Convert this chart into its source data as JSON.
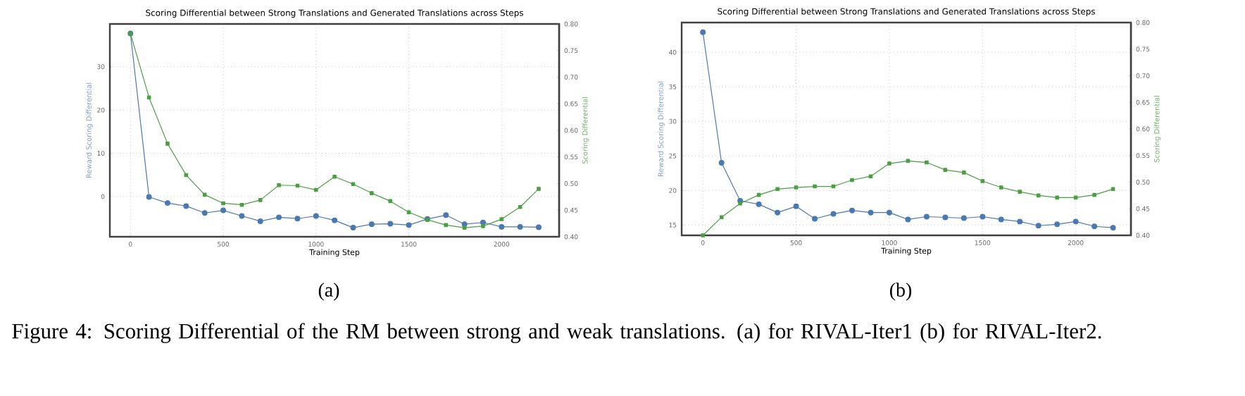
{
  "chart_data": [
    {
      "type": "line",
      "title": "Scoring Differential between Strong Translations and Generated Translations across Steps",
      "xlabel": "Training Step",
      "ylabel": "Reward Scoring Differential",
      "y2label": "Scoring Differential",
      "x": [
        0,
        100,
        200,
        300,
        400,
        500,
        600,
        700,
        800,
        900,
        1000,
        1100,
        1200,
        1300,
        1400,
        1500,
        1600,
        1700,
        1800,
        1900,
        2000,
        2100,
        2200
      ],
      "xlim": [
        -111,
        2310
      ],
      "xticks": [
        0,
        500,
        1000,
        1500,
        2000
      ],
      "ylim": [
        -9.3,
        39.9
      ],
      "yticks": [
        0,
        10,
        20,
        30
      ],
      "y2lim": [
        0.4,
        0.8
      ],
      "y2ticks": [
        {
          "value": 0.4,
          "label": "0.40"
        },
        {
          "value": 0.45,
          "label": "0.45"
        },
        {
          "value": 0.5,
          "label": "0.50"
        },
        {
          "value": 0.55,
          "label": "0.55"
        },
        {
          "value": 0.6,
          "label": "0.60"
        },
        {
          "value": 0.65,
          "label": "0.65"
        },
        {
          "value": 0.7,
          "label": "0.70"
        },
        {
          "value": 0.75,
          "label": "0.75"
        },
        {
          "value": 0.8,
          "label": "0.80"
        }
      ],
      "grid": true,
      "series": [
        {
          "color": "#4a78b0",
          "marker": "circle",
          "values": [
            37.7,
            -0.1,
            -1.5,
            -2.2,
            -3.8,
            -3.2,
            -4.5,
            -5.7,
            -4.8,
            -5.1,
            -4.5,
            -5.5,
            -7.2,
            -6.4,
            -6.3,
            -6.6,
            -5.2,
            -4.3,
            -6.4,
            -6.0,
            -7.0,
            -7.0,
            -7.1
          ]
        },
        {
          "color": "#4c9e42",
          "marker": "square",
          "axis": "y2",
          "values": [
            0.782,
            0.662,
            0.575,
            0.516,
            0.479,
            0.463,
            0.46,
            0.469,
            0.497,
            0.496,
            0.488,
            0.513,
            0.499,
            0.482,
            0.467,
            0.446,
            0.432,
            0.422,
            0.417,
            0.42,
            0.433,
            0.456,
            0.49
          ]
        }
      ],
      "annotations": [
        "(a)"
      ]
    },
    {
      "type": "line",
      "title": "Scoring Differential between Strong Translations and Generated Translations across Steps",
      "xlabel": "Training Step",
      "ylabel": "Reward Scoring Differential",
      "y2label": "Scoring Differential",
      "x": [
        0,
        100,
        200,
        300,
        400,
        500,
        600,
        700,
        800,
        900,
        1000,
        1100,
        1200,
        1300,
        1400,
        1500,
        1600,
        1700,
        1800,
        1900,
        2000,
        2100,
        2200
      ],
      "xlim": [
        -114,
        2296
      ],
      "xticks": [
        0,
        500,
        1000,
        1500,
        2000
      ],
      "ylim": [
        13.5,
        44.3
      ],
      "yticks": [
        15,
        20,
        25,
        30,
        35,
        40
      ],
      "y2lim": [
        0.4,
        0.8
      ],
      "y2ticks": [
        {
          "value": 0.4,
          "label": "0.40"
        },
        {
          "value": 0.45,
          "label": "0.45"
        },
        {
          "value": 0.5,
          "label": "0.50"
        },
        {
          "value": 0.55,
          "label": "0.55"
        },
        {
          "value": 0.6,
          "label": "0.60"
        },
        {
          "value": 0.65,
          "label": "0.65"
        },
        {
          "value": 0.7,
          "label": "0.70"
        },
        {
          "value": 0.75,
          "label": "0.75"
        },
        {
          "value": 0.8,
          "label": "0.80"
        }
      ],
      "grid": true,
      "series": [
        {
          "color": "#4a78b0",
          "marker": "circle",
          "values": [
            42.9,
            24.0,
            18.5,
            18.0,
            16.8,
            17.7,
            15.9,
            16.6,
            17.1,
            16.8,
            16.8,
            15.8,
            16.2,
            16.1,
            16.0,
            16.2,
            15.8,
            15.5,
            14.9,
            15.1,
            15.5,
            14.8,
            14.6
          ]
        },
        {
          "color": "#4c9e42",
          "marker": "square",
          "axis": "y2",
          "values": [
            0.4,
            0.434,
            0.46,
            0.476,
            0.487,
            0.49,
            0.492,
            0.492,
            0.504,
            0.511,
            0.535,
            0.54,
            0.537,
            0.523,
            0.518,
            0.502,
            0.49,
            0.482,
            0.475,
            0.471,
            0.471,
            0.476,
            0.487
          ]
        }
      ],
      "annotations": [
        "(b)",
        "Figure 4: Scoring Differential of the RM between strong and weak translations. (a) for RIVAL-Iter1 (b) for RIVAL-Iter2."
      ]
    }
  ]
}
